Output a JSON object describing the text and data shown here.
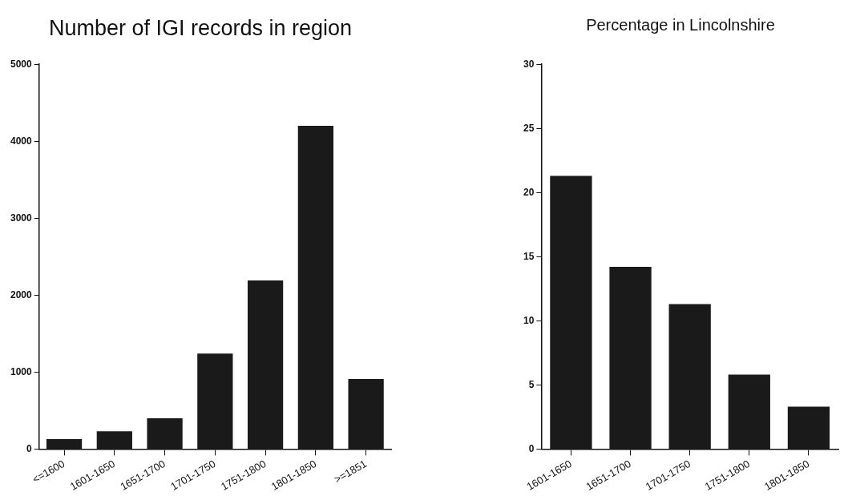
{
  "chart_data": [
    {
      "type": "bar",
      "title": "Number of IGI records in region",
      "categories": [
        "<=1600",
        "1601-1650",
        "1651-1700",
        "1701-1750",
        "1751-1800",
        "1801-1850",
        ">=1851"
      ],
      "values": [
        130,
        230,
        400,
        1240,
        2190,
        4200,
        910
      ],
      "color": "#1a1a1a",
      "ylim": [
        0,
        5000
      ],
      "yticks": [
        0,
        1000,
        2000,
        3000,
        4000,
        5000
      ],
      "grid": false
    },
    {
      "type": "bar",
      "title": "Percentage in Lincolnshire",
      "categories": [
        "1601-1650",
        "1651-1700",
        "1701-1750",
        "1751-1800",
        "1801-1850"
      ],
      "values": [
        21.3,
        14.2,
        11.3,
        5.8,
        3.3
      ],
      "color": "#1a1a1a",
      "ylim": [
        0,
        30
      ],
      "yticks": [
        0,
        5,
        10,
        15,
        20,
        25,
        30
      ],
      "grid": false
    }
  ]
}
